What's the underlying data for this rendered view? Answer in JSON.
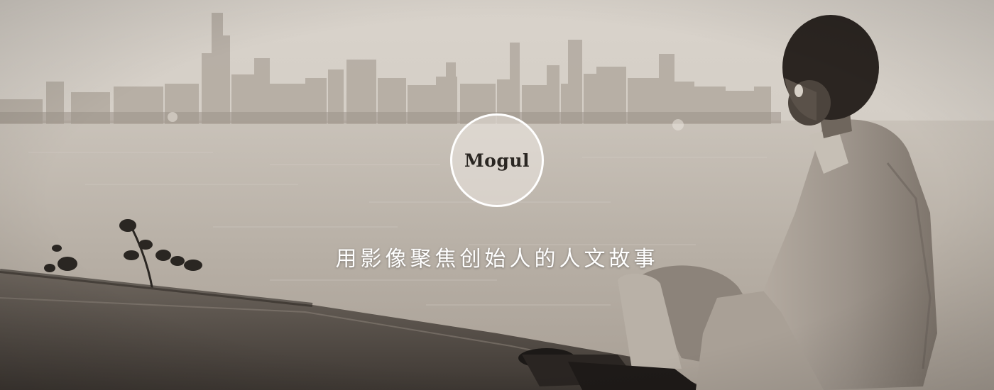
{
  "hero": {
    "logo_text": "Mogul",
    "tagline": "用影像聚焦创始人的人文故事"
  },
  "colors": {
    "badge_border": "#ffffff",
    "logo_text": "#2a2622",
    "tagline_text": "#ffffff",
    "sky": "#dcd6ce",
    "water": "#b8b0a6"
  }
}
